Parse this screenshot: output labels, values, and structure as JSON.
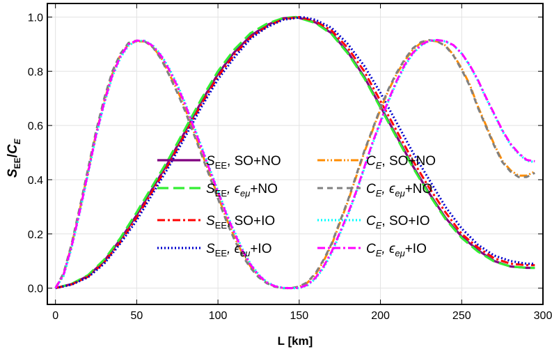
{
  "chart_data": {
    "type": "line",
    "xlabel": "L [km]",
    "ylabel": {
      "main": "S",
      "sub1": "EE",
      "slash": "/",
      "main2": "C",
      "sub2": "E"
    },
    "xlim": [
      -5,
      300
    ],
    "ylim": [
      -0.06,
      1.05
    ],
    "xticks": [
      0,
      50,
      100,
      150,
      200,
      250,
      300
    ],
    "xtick_labels": [
      "0",
      "50",
      "100",
      "150",
      "200",
      "250",
      "300"
    ],
    "yticks": [
      0.0,
      0.2,
      0.4,
      0.6,
      0.8,
      1.0
    ],
    "ytick_labels": [
      "0.0",
      "0.2",
      "0.4",
      "0.6",
      "0.8",
      "1.0"
    ],
    "grid": true,
    "legend_placement": "center",
    "series": [
      {
        "key": "see-so-no",
        "legend": {
          "sym": "S",
          "sub": "EE",
          "italic_sub": false,
          "rest": ", SO+NO"
        },
        "color": "#800080",
        "dash": "solid",
        "x": [
          0,
          10,
          20,
          30,
          40,
          50,
          60,
          70,
          80,
          90,
          100,
          110,
          120,
          130,
          140,
          148,
          160,
          170,
          180,
          190,
          200,
          210,
          220,
          230,
          240,
          250,
          260,
          270,
          280,
          290,
          295
        ],
        "y": [
          0.0,
          0.015,
          0.045,
          0.1,
          0.18,
          0.27,
          0.37,
          0.47,
          0.58,
          0.69,
          0.79,
          0.87,
          0.93,
          0.97,
          0.995,
          1.0,
          0.98,
          0.94,
          0.87,
          0.78,
          0.67,
          0.56,
          0.45,
          0.35,
          0.26,
          0.19,
          0.14,
          0.1,
          0.08,
          0.075,
          0.075
        ]
      },
      {
        "key": "see-emu-no",
        "legend": {
          "sym": "S",
          "sub": "EE",
          "italic_sub": false,
          "rest": ", ϵ",
          "sub2": "eμ",
          "rest2": "+NO"
        },
        "color": "#33ee33",
        "dash": "long",
        "x": [
          0,
          10,
          20,
          30,
          40,
          50,
          60,
          70,
          80,
          90,
          100,
          110,
          120,
          130,
          140,
          148,
          160,
          170,
          180,
          190,
          200,
          210,
          220,
          230,
          240,
          250,
          260,
          270,
          280,
          290,
          295
        ],
        "y": [
          0.0,
          0.016,
          0.048,
          0.105,
          0.185,
          0.28,
          0.38,
          0.48,
          0.59,
          0.7,
          0.8,
          0.88,
          0.94,
          0.975,
          0.996,
          1.0,
          0.978,
          0.937,
          0.865,
          0.775,
          0.665,
          0.555,
          0.445,
          0.345,
          0.255,
          0.185,
          0.135,
          0.098,
          0.08,
          0.075,
          0.075
        ]
      },
      {
        "key": "see-so-io",
        "legend": {
          "sym": "S",
          "sub": "EE",
          "italic_sub": false,
          "rest": ", SO+IO"
        },
        "color": "#ff0000",
        "dash": "dashdot",
        "x": [
          0,
          10,
          20,
          30,
          40,
          50,
          60,
          70,
          80,
          90,
          100,
          110,
          120,
          130,
          140,
          150,
          160,
          170,
          180,
          190,
          200,
          210,
          220,
          230,
          240,
          250,
          260,
          270,
          280,
          290,
          295
        ],
        "y": [
          0.0,
          0.014,
          0.042,
          0.095,
          0.17,
          0.26,
          0.36,
          0.46,
          0.57,
          0.68,
          0.78,
          0.86,
          0.925,
          0.965,
          0.992,
          1.0,
          0.985,
          0.95,
          0.885,
          0.8,
          0.69,
          0.58,
          0.47,
          0.37,
          0.28,
          0.2,
          0.15,
          0.11,
          0.09,
          0.085,
          0.085
        ]
      },
      {
        "key": "see-emu-io",
        "legend": {
          "sym": "S",
          "sub": "EE",
          "italic_sub": false,
          "rest": ", ϵ",
          "sub2": "eμ",
          "rest2": "+IO"
        },
        "color": "#0000cc",
        "dash": "dotted",
        "x": [
          0,
          10,
          20,
          30,
          40,
          50,
          60,
          70,
          80,
          90,
          100,
          110,
          120,
          130,
          140,
          152,
          160,
          170,
          180,
          190,
          200,
          210,
          220,
          230,
          240,
          250,
          260,
          270,
          280,
          290,
          295
        ],
        "y": [
          0.0,
          0.013,
          0.04,
          0.09,
          0.165,
          0.25,
          0.35,
          0.45,
          0.56,
          0.67,
          0.77,
          0.85,
          0.92,
          0.962,
          0.99,
          1.0,
          0.99,
          0.96,
          0.9,
          0.82,
          0.72,
          0.61,
          0.5,
          0.4,
          0.3,
          0.22,
          0.16,
          0.12,
          0.1,
          0.09,
          0.09
        ]
      },
      {
        "key": "ce-so-no",
        "legend": {
          "sym": "C",
          "sub": "E",
          "italic_sub": true,
          "rest": ", SO+NO"
        },
        "color": "#ff8c00",
        "dash": "dashdotdot",
        "x": [
          0,
          5,
          10,
          15,
          20,
          25,
          30,
          35,
          40,
          45,
          50,
          55,
          60,
          65,
          70,
          75,
          80,
          85,
          90,
          95,
          100,
          105,
          110,
          115,
          120,
          125,
          130,
          135,
          140,
          145,
          150,
          155,
          160,
          165,
          170,
          175,
          180,
          185,
          190,
          195,
          200,
          205,
          210,
          215,
          220,
          225,
          230,
          235,
          240,
          245,
          250,
          255,
          260,
          265,
          270,
          275,
          280,
          285,
          290,
          295
        ],
        "y": [
          0.0,
          0.05,
          0.16,
          0.29,
          0.43,
          0.57,
          0.69,
          0.79,
          0.86,
          0.9,
          0.91,
          0.91,
          0.89,
          0.85,
          0.79,
          0.73,
          0.66,
          0.58,
          0.5,
          0.42,
          0.34,
          0.26,
          0.19,
          0.13,
          0.08,
          0.045,
          0.02,
          0.006,
          0.0,
          0.0,
          0.005,
          0.02,
          0.05,
          0.1,
          0.16,
          0.24,
          0.32,
          0.41,
          0.5,
          0.58,
          0.66,
          0.73,
          0.79,
          0.84,
          0.88,
          0.905,
          0.914,
          0.91,
          0.895,
          0.86,
          0.81,
          0.75,
          0.67,
          0.6,
          0.53,
          0.47,
          0.435,
          0.415,
          0.415,
          0.43
        ]
      },
      {
        "key": "ce-emu-no",
        "legend": {
          "sym": "C",
          "sub": "E",
          "italic_sub": true,
          "rest": ", ϵ",
          "sub2": "eμ",
          "rest2": "+NO"
        },
        "color": "#808080",
        "dash": "dashed",
        "x": [
          0,
          5,
          10,
          15,
          20,
          25,
          30,
          35,
          40,
          45,
          50,
          55,
          60,
          65,
          70,
          75,
          80,
          85,
          90,
          95,
          100,
          105,
          110,
          115,
          120,
          125,
          130,
          135,
          140,
          145,
          150,
          155,
          160,
          165,
          170,
          175,
          180,
          185,
          190,
          195,
          200,
          205,
          210,
          215,
          220,
          225,
          230,
          235,
          240,
          245,
          250,
          255,
          260,
          265,
          270,
          275,
          280,
          285,
          290,
          295
        ],
        "y": [
          0.0,
          0.055,
          0.165,
          0.3,
          0.44,
          0.58,
          0.7,
          0.8,
          0.865,
          0.905,
          0.913,
          0.91,
          0.888,
          0.845,
          0.785,
          0.72,
          0.65,
          0.57,
          0.49,
          0.41,
          0.33,
          0.25,
          0.18,
          0.12,
          0.075,
          0.04,
          0.018,
          0.005,
          0.0,
          0.0,
          0.006,
          0.022,
          0.055,
          0.105,
          0.165,
          0.245,
          0.325,
          0.415,
          0.505,
          0.585,
          0.665,
          0.735,
          0.795,
          0.845,
          0.885,
          0.908,
          0.915,
          0.91,
          0.893,
          0.857,
          0.805,
          0.745,
          0.665,
          0.595,
          0.525,
          0.465,
          0.43,
          0.41,
          0.41,
          0.425
        ]
      },
      {
        "key": "ce-so-io",
        "legend": {
          "sym": "C",
          "sub": "E",
          "italic_sub": true,
          "rest": ", SO+IO"
        },
        "color": "#00ffff",
        "dash": "dotted",
        "x": [
          0,
          5,
          10,
          15,
          20,
          25,
          30,
          35,
          40,
          45,
          50,
          55,
          60,
          65,
          70,
          75,
          80,
          85,
          90,
          95,
          100,
          105,
          110,
          115,
          120,
          125,
          130,
          135,
          140,
          145,
          150,
          155,
          160,
          165,
          170,
          175,
          180,
          185,
          190,
          195,
          200,
          205,
          210,
          215,
          220,
          225,
          230,
          235,
          240,
          245,
          250,
          255,
          260,
          265,
          270,
          275,
          280,
          285,
          290,
          295
        ],
        "y": [
          0.0,
          0.045,
          0.15,
          0.28,
          0.42,
          0.56,
          0.68,
          0.78,
          0.85,
          0.895,
          0.912,
          0.912,
          0.895,
          0.86,
          0.81,
          0.75,
          0.68,
          0.6,
          0.52,
          0.44,
          0.36,
          0.28,
          0.21,
          0.145,
          0.09,
          0.05,
          0.023,
          0.008,
          0.001,
          0.0,
          0.0,
          0.01,
          0.035,
          0.075,
          0.13,
          0.2,
          0.27,
          0.35,
          0.44,
          0.53,
          0.61,
          0.69,
          0.76,
          0.82,
          0.865,
          0.895,
          0.912,
          0.915,
          0.91,
          0.895,
          0.865,
          0.82,
          0.765,
          0.7,
          0.64,
          0.58,
          0.53,
          0.495,
          0.47,
          0.465
        ]
      },
      {
        "key": "ce-emu-io",
        "legend": {
          "sym": "C",
          "sub": "E",
          "italic_sub": true,
          "rest": ", ϵ",
          "sub2": "eμ",
          "rest2": "+IO"
        },
        "color": "#ff00ff",
        "dash": "dashdot",
        "x": [
          0,
          5,
          10,
          15,
          20,
          25,
          30,
          35,
          40,
          45,
          50,
          55,
          60,
          65,
          70,
          75,
          80,
          85,
          90,
          95,
          100,
          105,
          110,
          115,
          120,
          125,
          130,
          135,
          140,
          145,
          150,
          155,
          160,
          165,
          170,
          175,
          180,
          185,
          190,
          195,
          200,
          205,
          210,
          215,
          220,
          225,
          230,
          235,
          240,
          245,
          250,
          255,
          260,
          265,
          270,
          275,
          280,
          285,
          290,
          295
        ],
        "y": [
          0.0,
          0.05,
          0.155,
          0.285,
          0.425,
          0.565,
          0.685,
          0.785,
          0.855,
          0.9,
          0.913,
          0.912,
          0.893,
          0.857,
          0.805,
          0.745,
          0.675,
          0.595,
          0.515,
          0.435,
          0.355,
          0.275,
          0.205,
          0.14,
          0.087,
          0.048,
          0.021,
          0.007,
          0.001,
          0.0,
          0.001,
          0.012,
          0.038,
          0.08,
          0.135,
          0.205,
          0.275,
          0.355,
          0.445,
          0.535,
          0.615,
          0.695,
          0.765,
          0.825,
          0.868,
          0.897,
          0.913,
          0.915,
          0.911,
          0.896,
          0.866,
          0.822,
          0.768,
          0.703,
          0.643,
          0.583,
          0.533,
          0.498,
          0.473,
          0.468
        ]
      }
    ]
  }
}
